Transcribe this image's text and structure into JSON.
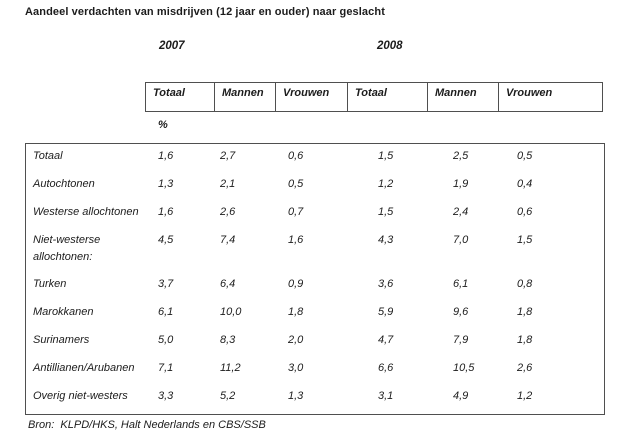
{
  "title": "Aandeel verdachten van misdrijven (12 jaar en ouder) naar geslacht",
  "colors": {
    "text": "#1c1c1c",
    "border": "#4f4f4f",
    "background": "#ffffff"
  },
  "table": {
    "year_headers": [
      "2007",
      "2008"
    ],
    "column_headers": [
      "Totaal",
      "Mannen",
      "Vrouwen",
      "Totaal",
      "Mannen",
      "Vrouwen"
    ],
    "unit_label": "%",
    "rows": [
      {
        "label": "Totaal",
        "two_line": false,
        "values": [
          "1,6",
          "2,7",
          "0,6",
          "1,5",
          "2,5",
          "0,5"
        ]
      },
      {
        "label": "Autochtonen",
        "two_line": false,
        "values": [
          "1,3",
          "2,1",
          "0,5",
          "1,2",
          "1,9",
          "0,4"
        ]
      },
      {
        "label": "Westerse allochtonen",
        "two_line": false,
        "values": [
          "1,6",
          "2,6",
          "0,7",
          "1,5",
          "2,4",
          "0,6"
        ]
      },
      {
        "label": "Niet-westerse allochtonen:",
        "two_line": true,
        "values": [
          "4,5",
          "7,4",
          "1,6",
          "4,3",
          "7,0",
          "1,5"
        ]
      },
      {
        "label": "Turken",
        "two_line": false,
        "values": [
          "3,7",
          "6,4",
          "0,9",
          "3,6",
          "6,1",
          "0,8"
        ]
      },
      {
        "label": "Marokkanen",
        "two_line": false,
        "values": [
          "6,1",
          "10,0",
          "1,8",
          "5,9",
          "9,6",
          "1,8"
        ]
      },
      {
        "label": "Surinamers",
        "two_line": false,
        "values": [
          "5,0",
          "8,3",
          "2,0",
          "4,7",
          "7,9",
          "1,8"
        ]
      },
      {
        "label": "Antillianen/Arubanen",
        "two_line": false,
        "values": [
          "7,1",
          "11,2",
          "3,0",
          "6,6",
          "10,5",
          "2,6"
        ]
      },
      {
        "label": "Overig niet-westers",
        "two_line": false,
        "values": [
          "3,3",
          "5,2",
          "1,3",
          "3,1",
          "4,9",
          "1,2"
        ]
      }
    ]
  },
  "source": "Bron:  KLPD/HKS, Halt Nederlands en CBS/SSB"
}
